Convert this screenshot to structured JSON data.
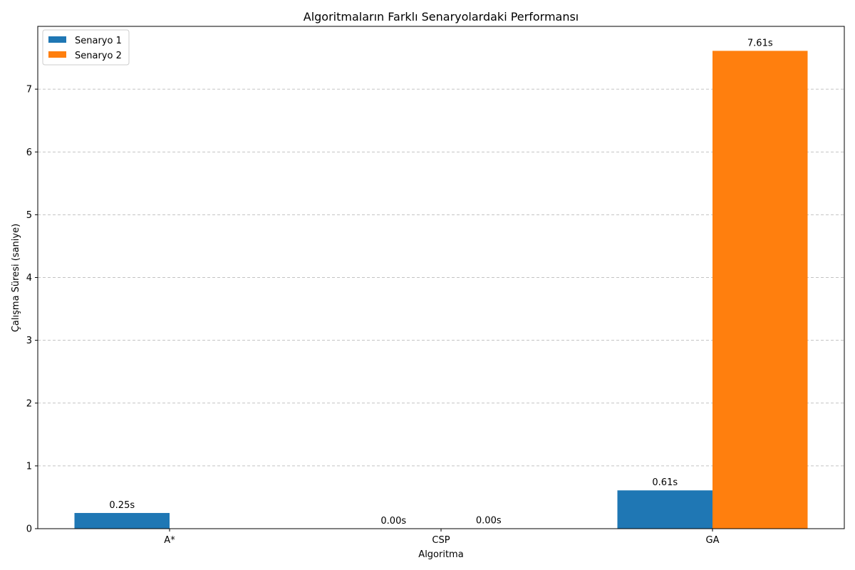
{
  "chart_data": {
    "type": "bar",
    "title": "Algoritmaların Farklı Senaryolardaki Performansı",
    "xlabel": "Algoritma",
    "ylabel": "Çalışma Süresi (saniye)",
    "categories": [
      "A*",
      "CSP",
      "GA"
    ],
    "series": [
      {
        "name": "Senaryo 1",
        "color": "#1f77b4",
        "values": [
          0.25,
          0.0,
          0.61
        ],
        "labels": [
          "0.25s",
          "0.00s",
          "0.61s"
        ]
      },
      {
        "name": "Senaryo 2",
        "color": "#ff7f0e",
        "values": [
          null,
          0.004,
          7.61
        ],
        "labels": [
          null,
          "0.00s",
          "7.61s"
        ]
      }
    ],
    "ylim": [
      0,
      8
    ],
    "yticks": [
      0,
      1,
      2,
      3,
      4,
      5,
      6,
      7
    ],
    "grid": "y-dashed",
    "legend": "top-left"
  }
}
